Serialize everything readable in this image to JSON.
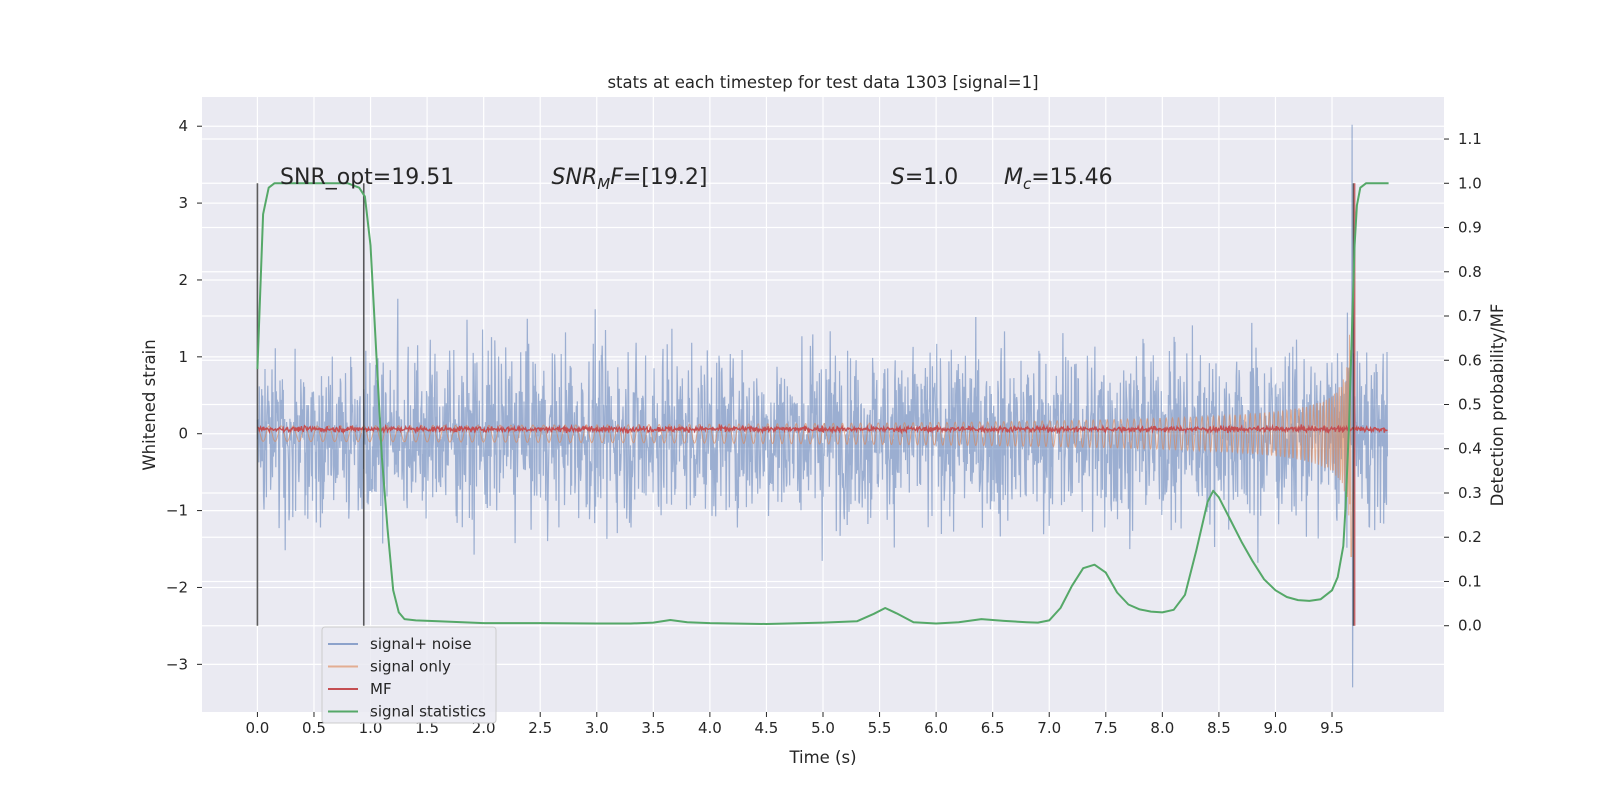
{
  "chart_data": {
    "type": "line",
    "title": "stats at each timestep for test data 1303 [signal=1]",
    "xlabel": "Time (s)",
    "ylabel_left": "Whitened strain",
    "ylabel_right": "Detection probability/MF",
    "xlim": [
      -0.49,
      10.49
    ],
    "ylim_left": [
      -3.62,
      4.38
    ],
    "ylim_right": [
      -0.195,
      1.195
    ],
    "x_ticks": [
      "0.0",
      "0.5",
      "1.0",
      "1.5",
      "2.0",
      "2.5",
      "3.0",
      "3.5",
      "4.0",
      "4.5",
      "5.0",
      "5.5",
      "6.0",
      "6.5",
      "7.0",
      "7.5",
      "8.0",
      "8.5",
      "9.0",
      "9.5"
    ],
    "y_ticks_left": [
      "−3",
      "−2",
      "−1",
      "0",
      "1",
      "2",
      "3",
      "4"
    ],
    "y_ticks_right": [
      "0.0",
      "0.1",
      "0.2",
      "0.3",
      "0.4",
      "0.5",
      "0.6",
      "0.7",
      "0.8",
      "0.9",
      "1.0",
      "1.1"
    ],
    "grid": true,
    "legend_position": "lower-left",
    "series": [
      {
        "name": "signal+ noise",
        "color": "#4c72b0",
        "axis": "left",
        "kind": "noise",
        "x_range": [
          0,
          9.99
        ],
        "typical_amplitude": 1.1,
        "max": 4.02,
        "min": -3.3
      },
      {
        "name": "signal only",
        "color": "#dd8452",
        "axis": "left",
        "kind": "chirp",
        "x_range": [
          0,
          9.7
        ],
        "peak_amplitude": 1.6,
        "merger_time": 9.67
      },
      {
        "name": "MF",
        "color": "#c44e52",
        "axis": "left",
        "kind": "band",
        "x_range": [
          0,
          9.99
        ],
        "center": 0.06,
        "typical_amplitude": 0.07
      },
      {
        "name": "signal statistics",
        "color": "#55a868",
        "axis": "right",
        "x": [
          0.0,
          0.05,
          0.1,
          0.15,
          0.2,
          0.3,
          0.4,
          0.5,
          0.6,
          0.7,
          0.8,
          0.9,
          0.95,
          1.0,
          1.05,
          1.1,
          1.15,
          1.2,
          1.25,
          1.3,
          1.4,
          1.6,
          2.0,
          2.5,
          3.0,
          3.3,
          3.5,
          3.65,
          3.8,
          4.0,
          4.5,
          5.0,
          5.3,
          5.45,
          5.55,
          5.65,
          5.8,
          6.0,
          6.2,
          6.4,
          6.6,
          6.8,
          6.9,
          7.0,
          7.1,
          7.2,
          7.3,
          7.4,
          7.5,
          7.6,
          7.7,
          7.8,
          7.9,
          8.0,
          8.1,
          8.2,
          8.3,
          8.4,
          8.45,
          8.5,
          8.6,
          8.7,
          8.8,
          8.9,
          9.0,
          9.1,
          9.2,
          9.3,
          9.4,
          9.5,
          9.55,
          9.6,
          9.62,
          9.65,
          9.68,
          9.7,
          9.72,
          9.75,
          9.8,
          9.85,
          9.9,
          9.95,
          10.0
        ],
        "y": [
          0.58,
          0.93,
          0.99,
          1.0,
          1.0,
          1.0,
          1.0,
          1.0,
          1.0,
          1.0,
          1.0,
          0.99,
          0.97,
          0.86,
          0.62,
          0.38,
          0.22,
          0.08,
          0.03,
          0.015,
          0.012,
          0.01,
          0.006,
          0.006,
          0.005,
          0.005,
          0.007,
          0.013,
          0.008,
          0.006,
          0.004,
          0.007,
          0.01,
          0.027,
          0.04,
          0.028,
          0.008,
          0.005,
          0.008,
          0.015,
          0.011,
          0.008,
          0.007,
          0.012,
          0.04,
          0.09,
          0.13,
          0.138,
          0.12,
          0.075,
          0.048,
          0.037,
          0.032,
          0.03,
          0.036,
          0.07,
          0.17,
          0.28,
          0.305,
          0.29,
          0.24,
          0.19,
          0.145,
          0.105,
          0.08,
          0.065,
          0.058,
          0.056,
          0.06,
          0.08,
          0.11,
          0.18,
          0.27,
          0.45,
          0.7,
          0.86,
          0.95,
          0.99,
          1.0,
          1.0,
          1.0,
          1.0,
          1.0
        ]
      }
    ],
    "annotations": [
      {
        "text": "SNR_opt=19.51",
        "x": 0.2
      },
      {
        "base": "SNR",
        "sub": "M",
        "rest": "F=[19.2]",
        "x": 2.6
      },
      {
        "base": "S",
        "sub": "",
        "rest": "=1.0",
        "x": 5.6
      },
      {
        "base": "M",
        "sub": "c",
        "rest": "=15.46",
        "x": 6.6
      }
    ],
    "vlines": [
      {
        "x": 0.0,
        "color": "#333333"
      },
      {
        "x": 0.94,
        "color": "#333333"
      },
      {
        "x": 9.69,
        "color": "#333333"
      },
      {
        "x": 9.7,
        "color": "#c44e52"
      }
    ],
    "vline_range_right": [
      0.0,
      1.0
    ]
  }
}
